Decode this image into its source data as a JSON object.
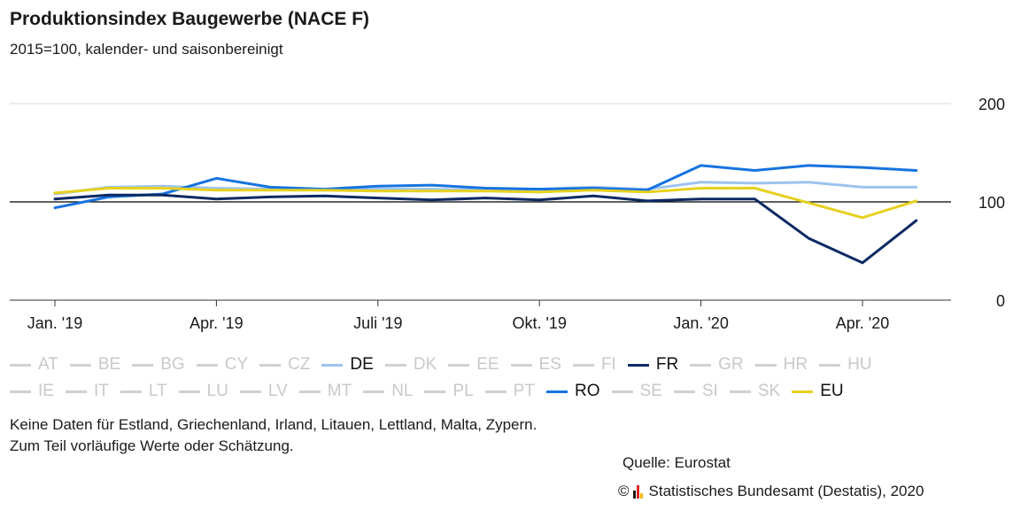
{
  "title": "Produktionsindex Baugewerbe (NACE F)",
  "subtitle": "2015=100, kalender- und saisonbereinigt",
  "notes": [
    "Keine Daten für Estland, Griechenland, Irland, Litauen, Lettland, Malta, Zypern.",
    "Zum Teil vorläufige Werte oder Schätzung."
  ],
  "source": "Quelle: Eurostat",
  "copyright": "Statistisches Bundesamt (Destatis), 2020",
  "copyright_symbol": "©",
  "colors": {
    "DE": "#9dc3f0",
    "FR": "#0c2a63",
    "RO": "#1673e0",
    "EU": "#e6d11f",
    "muted": "#d0d0d0",
    "grid": "#d9d9d9",
    "baseline": "#000000"
  },
  "legend_rows": [
    [
      {
        "label": "AT",
        "active": false
      },
      {
        "label": "BE",
        "active": false
      },
      {
        "label": "BG",
        "active": false
      },
      {
        "label": "CY",
        "active": false
      },
      {
        "label": "CZ",
        "active": false
      },
      {
        "label": "DE",
        "active": true
      },
      {
        "label": "DK",
        "active": false
      },
      {
        "label": "EE",
        "active": false
      },
      {
        "label": "ES",
        "active": false
      },
      {
        "label": "FI",
        "active": false
      },
      {
        "label": "FR",
        "active": true
      },
      {
        "label": "GR",
        "active": false
      },
      {
        "label": "HR",
        "active": false
      },
      {
        "label": "HU",
        "active": false
      }
    ],
    [
      {
        "label": "IE",
        "active": false
      },
      {
        "label": "IT",
        "active": false
      },
      {
        "label": "LT",
        "active": false
      },
      {
        "label": "LU",
        "active": false
      },
      {
        "label": "LV",
        "active": false
      },
      {
        "label": "MT",
        "active": false
      },
      {
        "label": "NL",
        "active": false
      },
      {
        "label": "PL",
        "active": false
      },
      {
        "label": "PT",
        "active": false
      },
      {
        "label": "RO",
        "active": true
      },
      {
        "label": "SE",
        "active": false
      },
      {
        "label": "SI",
        "active": false
      },
      {
        "label": "SK",
        "active": false
      },
      {
        "label": "EU",
        "active": true
      }
    ]
  ],
  "chart_data": {
    "type": "line",
    "title": "Produktionsindex Baugewerbe (NACE F)",
    "subtitle": "2015=100, kalender- und saisonbereinigt",
    "x": [
      "2019-01",
      "2019-02",
      "2019-03",
      "2019-04",
      "2019-05",
      "2019-06",
      "2019-07",
      "2019-08",
      "2019-09",
      "2019-10",
      "2019-11",
      "2019-12",
      "2020-01",
      "2020-02",
      "2020-03",
      "2020-04",
      "2020-05"
    ],
    "x_ticks": [
      {
        "index": 0,
        "label": "Jan. '19"
      },
      {
        "index": 3,
        "label": "Apr. '19"
      },
      {
        "index": 6,
        "label": "Juli '19"
      },
      {
        "index": 9,
        "label": "Okt. '19"
      },
      {
        "index": 12,
        "label": "Jan. '20"
      },
      {
        "index": 15,
        "label": "Apr. '20"
      }
    ],
    "ylim": [
      0,
      200
    ],
    "y_ticks": [
      0,
      100,
      200
    ],
    "baseline": 100,
    "grid": true,
    "y_axis_side": "right",
    "series": [
      {
        "name": "DE",
        "color": "#9dc3f0",
        "values": [
          108,
          115,
          116,
          114,
          113,
          112,
          113,
          113,
          112,
          113,
          115,
          113,
          120,
          119,
          120,
          115,
          115
        ]
      },
      {
        "name": "RO",
        "color": "#1673e0",
        "values": [
          94,
          105,
          108,
          124,
          115,
          113,
          116,
          117,
          114,
          113,
          114,
          112,
          137,
          132,
          137,
          135,
          132
        ]
      },
      {
        "name": "EU",
        "color": "#e6d11f",
        "values": [
          109,
          114,
          114,
          112,
          112,
          112,
          111,
          111,
          111,
          110,
          112,
          110,
          114,
          114,
          99,
          84,
          101
        ]
      },
      {
        "name": "FR",
        "color": "#0c2a63",
        "values": [
          103,
          107,
          107,
          103,
          105,
          106,
          104,
          102,
          104,
          102,
          106,
          101,
          103,
          103,
          63,
          38,
          81
        ]
      }
    ]
  }
}
